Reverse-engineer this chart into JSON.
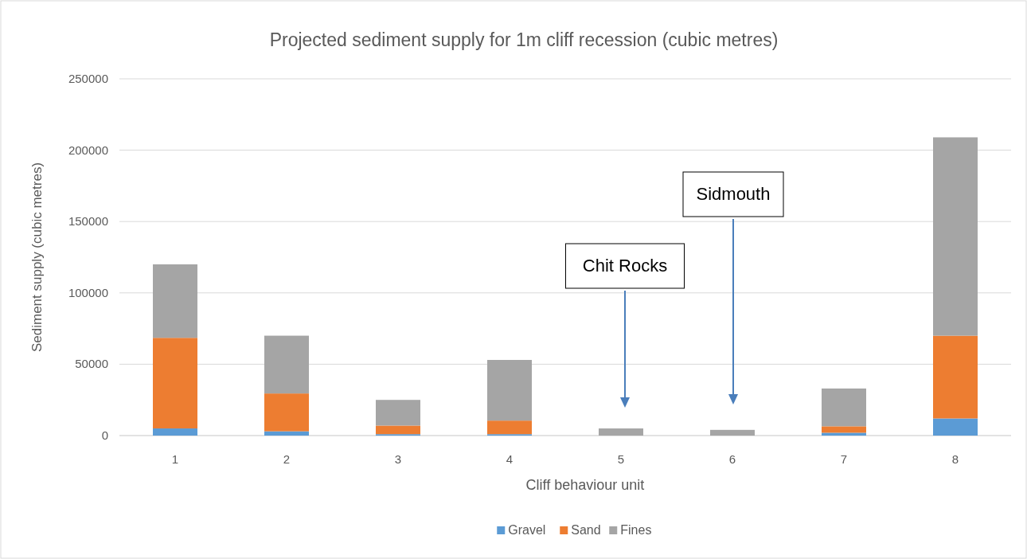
{
  "chart_data": {
    "type": "bar",
    "title": "Projected sediment supply for 1m cliff recession (cubic metres)",
    "xlabel": "Cliff behaviour unit",
    "ylabel": "Sediment supply (cubic metres)",
    "categories": [
      "1",
      "2",
      "3",
      "4",
      "5",
      "6",
      "7",
      "8"
    ],
    "stacked": true,
    "series": [
      {
        "name": "Gravel",
        "color": "#5b9bd5",
        "values": [
          5000,
          3000,
          1000,
          1000,
          0,
          0,
          2000,
          12000
        ]
      },
      {
        "name": "Sand",
        "color": "#ed7d31",
        "values": [
          63500,
          26500,
          6000,
          9500,
          0,
          0,
          4500,
          58000
        ]
      },
      {
        "name": "Fines",
        "color": "#a5a5a5",
        "values": [
          51500,
          40500,
          18000,
          42500,
          5000,
          4000,
          26500,
          139000
        ]
      }
    ],
    "ylim": [
      0,
      250000
    ],
    "yticks": [
      0,
      50000,
      100000,
      150000,
      200000,
      250000
    ],
    "grid": "y",
    "legend": "bottom",
    "annotations": [
      "Chit Rocks",
      "Sidmouth"
    ]
  }
}
